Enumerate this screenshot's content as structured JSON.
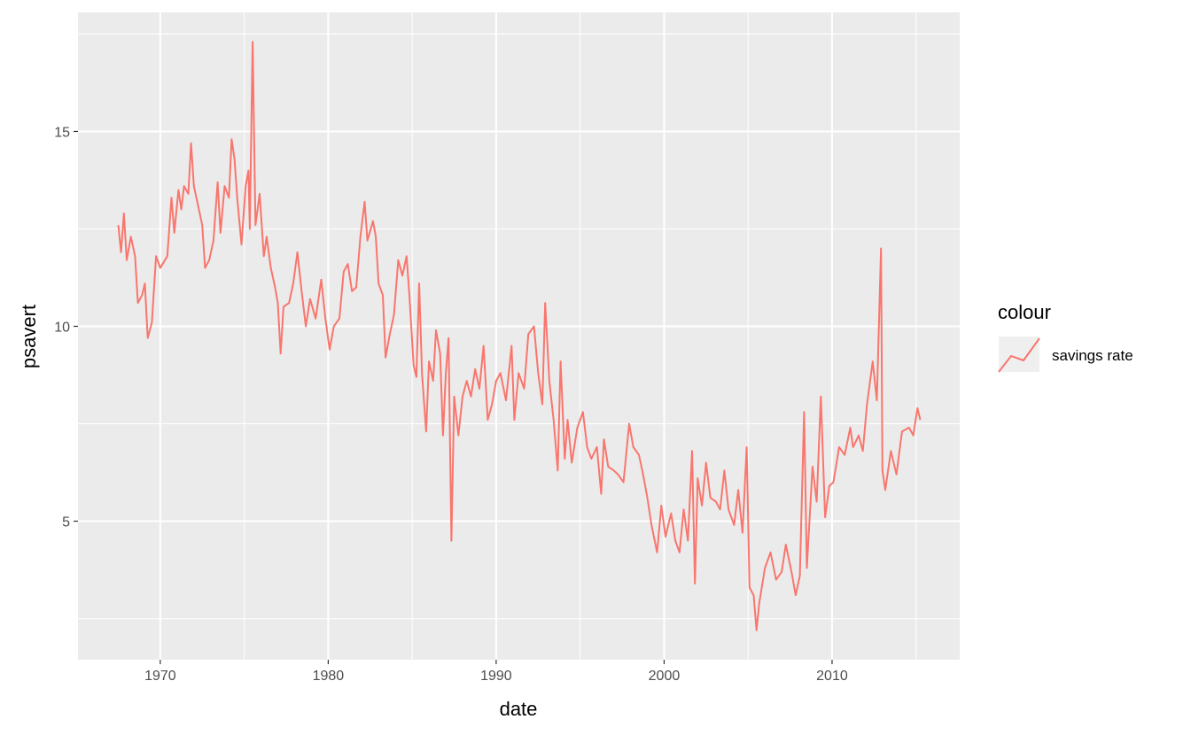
{
  "chart_data": {
    "type": "line",
    "title": "",
    "xlabel": "date",
    "ylabel": "psavert",
    "xlim": [
      1965.1,
      2017.6
    ],
    "ylim": [
      1.445,
      18.055
    ],
    "x_ticks": [
      1970,
      1980,
      1990,
      2000,
      2010
    ],
    "x_tick_labels": [
      "1970",
      "1980",
      "1990",
      "2000",
      "2010"
    ],
    "y_ticks": [
      5,
      10,
      15
    ],
    "y_tick_labels": [
      "5",
      "10",
      "15"
    ],
    "grid": true,
    "legend": {
      "title": "colour",
      "placement": "right",
      "entries": [
        "savings rate"
      ]
    },
    "colors": {
      "series": "#F8766D",
      "panel": "#EBEBEB",
      "grid": "#FFFFFF"
    },
    "series": [
      {
        "name": "savings rate",
        "points": [
          [
            "1967-07",
            12.6
          ],
          [
            "1967-09",
            11.9
          ],
          [
            "1967-11",
            12.9
          ],
          [
            "1968-01",
            11.7
          ],
          [
            "1968-04",
            12.3
          ],
          [
            "1968-07",
            11.8
          ],
          [
            "1968-09",
            10.6
          ],
          [
            "1968-12",
            10.8
          ],
          [
            "1969-02",
            11.1
          ],
          [
            "1969-04",
            9.7
          ],
          [
            "1969-07",
            10.1
          ],
          [
            "1969-10",
            11.8
          ],
          [
            "1970-01",
            11.5
          ],
          [
            "1970-06",
            11.8
          ],
          [
            "1970-09",
            13.3
          ],
          [
            "1970-11",
            12.4
          ],
          [
            "1971-02",
            13.5
          ],
          [
            "1971-04",
            13.0
          ],
          [
            "1971-06",
            13.6
          ],
          [
            "1971-09",
            13.4
          ],
          [
            "1971-11",
            14.7
          ],
          [
            "1972-01",
            13.6
          ],
          [
            "1972-04",
            13.1
          ],
          [
            "1972-07",
            12.6
          ],
          [
            "1972-09",
            11.5
          ],
          [
            "1972-12",
            11.7
          ],
          [
            "1973-03",
            12.2
          ],
          [
            "1973-06",
            13.7
          ],
          [
            "1973-08",
            12.4
          ],
          [
            "1973-11",
            13.6
          ],
          [
            "1974-02",
            13.3
          ],
          [
            "1974-04",
            14.8
          ],
          [
            "1974-06",
            14.3
          ],
          [
            "1974-08",
            13.3
          ],
          [
            "1974-11",
            12.1
          ],
          [
            "1975-02",
            13.6
          ],
          [
            "1975-04",
            14.0
          ],
          [
            "1975-05",
            12.5
          ],
          [
            "1975-07",
            17.3
          ],
          [
            "1975-09",
            12.6
          ],
          [
            "1975-12",
            13.4
          ],
          [
            "1976-03",
            11.8
          ],
          [
            "1976-05",
            12.3
          ],
          [
            "1976-08",
            11.5
          ],
          [
            "1976-11",
            11.0
          ],
          [
            "1977-01",
            10.6
          ],
          [
            "1977-03",
            9.3
          ],
          [
            "1977-05",
            10.5
          ],
          [
            "1977-09",
            10.6
          ],
          [
            "1977-12",
            11.1
          ],
          [
            "1978-03",
            11.9
          ],
          [
            "1978-06",
            10.9
          ],
          [
            "1978-09",
            10.0
          ],
          [
            "1978-12",
            10.7
          ],
          [
            "1979-04",
            10.2
          ],
          [
            "1979-08",
            11.2
          ],
          [
            "1979-11",
            10.2
          ],
          [
            "1980-02",
            9.4
          ],
          [
            "1980-05",
            10.0
          ],
          [
            "1980-09",
            10.2
          ],
          [
            "1980-12",
            11.4
          ],
          [
            "1981-03",
            11.6
          ],
          [
            "1981-06",
            10.9
          ],
          [
            "1981-09",
            11.0
          ],
          [
            "1981-12",
            12.3
          ],
          [
            "1982-03",
            13.2
          ],
          [
            "1982-05",
            12.2
          ],
          [
            "1982-09",
            12.7
          ],
          [
            "1982-11",
            12.3
          ],
          [
            "1983-01",
            11.1
          ],
          [
            "1983-04",
            10.8
          ],
          [
            "1983-06",
            9.2
          ],
          [
            "1983-09",
            9.8
          ],
          [
            "1983-12",
            10.3
          ],
          [
            "1984-03",
            11.7
          ],
          [
            "1984-06",
            11.3
          ],
          [
            "1984-09",
            11.8
          ],
          [
            "1984-11",
            10.8
          ],
          [
            "1985-02",
            9.0
          ],
          [
            "1985-04",
            8.7
          ],
          [
            "1985-06",
            11.1
          ],
          [
            "1985-08",
            8.8
          ],
          [
            "1985-11",
            7.3
          ],
          [
            "1986-01",
            9.1
          ],
          [
            "1986-04",
            8.6
          ],
          [
            "1986-06",
            9.9
          ],
          [
            "1986-09",
            9.3
          ],
          [
            "1986-11",
            7.2
          ],
          [
            "1987-01",
            8.8
          ],
          [
            "1987-03",
            9.7
          ],
          [
            "1987-05",
            4.5
          ],
          [
            "1987-07",
            8.2
          ],
          [
            "1987-10",
            7.2
          ],
          [
            "1988-01",
            8.2
          ],
          [
            "1988-04",
            8.6
          ],
          [
            "1988-07",
            8.2
          ],
          [
            "1988-10",
            8.9
          ],
          [
            "1989-01",
            8.4
          ],
          [
            "1989-04",
            9.5
          ],
          [
            "1989-07",
            7.6
          ],
          [
            "1989-10",
            8.0
          ],
          [
            "1990-01",
            8.6
          ],
          [
            "1990-04",
            8.8
          ],
          [
            "1990-08",
            8.1
          ],
          [
            "1990-12",
            9.5
          ],
          [
            "1991-02",
            7.6
          ],
          [
            "1991-05",
            8.8
          ],
          [
            "1991-09",
            8.4
          ],
          [
            "1991-12",
            9.8
          ],
          [
            "1992-04",
            10.0
          ],
          [
            "1992-07",
            8.8
          ],
          [
            "1992-10",
            8.0
          ],
          [
            "1992-12",
            10.6
          ],
          [
            "1993-03",
            8.6
          ],
          [
            "1993-06",
            7.6
          ],
          [
            "1993-09",
            6.3
          ],
          [
            "1993-11",
            9.1
          ],
          [
            "1994-02",
            6.6
          ],
          [
            "1994-04",
            7.6
          ],
          [
            "1994-07",
            6.5
          ],
          [
            "1994-11",
            7.4
          ],
          [
            "1995-03",
            7.8
          ],
          [
            "1995-06",
            6.9
          ],
          [
            "1995-09",
            6.6
          ],
          [
            "1996-01",
            6.9
          ],
          [
            "1996-04",
            5.7
          ],
          [
            "1996-06",
            7.1
          ],
          [
            "1996-09",
            6.4
          ],
          [
            "1997-01",
            6.3
          ],
          [
            "1997-04",
            6.2
          ],
          [
            "1997-08",
            6.0
          ],
          [
            "1997-12",
            7.5
          ],
          [
            "1998-03",
            6.9
          ],
          [
            "1998-07",
            6.7
          ],
          [
            "1998-10",
            6.2
          ],
          [
            "1999-01",
            5.6
          ],
          [
            "1999-04",
            4.9
          ],
          [
            "1999-08",
            4.2
          ],
          [
            "1999-11",
            5.4
          ],
          [
            "2000-02",
            4.6
          ],
          [
            "2000-06",
            5.2
          ],
          [
            "2000-09",
            4.5
          ],
          [
            "2000-12",
            4.2
          ],
          [
            "2001-03",
            5.3
          ],
          [
            "2001-06",
            4.5
          ],
          [
            "2001-09",
            6.8
          ],
          [
            "2001-11",
            3.4
          ],
          [
            "2002-01",
            6.1
          ],
          [
            "2002-04",
            5.4
          ],
          [
            "2002-07",
            6.5
          ],
          [
            "2002-10",
            5.6
          ],
          [
            "2003-02",
            5.5
          ],
          [
            "2003-05",
            5.3
          ],
          [
            "2003-08",
            6.3
          ],
          [
            "2003-11",
            5.3
          ],
          [
            "2004-03",
            4.9
          ],
          [
            "2004-06",
            5.8
          ],
          [
            "2004-09",
            4.7
          ],
          [
            "2004-12",
            6.9
          ],
          [
            "2005-02",
            3.3
          ],
          [
            "2005-05",
            3.1
          ],
          [
            "2005-07",
            2.2
          ],
          [
            "2005-09",
            2.9
          ],
          [
            "2006-01",
            3.8
          ],
          [
            "2006-05",
            4.2
          ],
          [
            "2006-09",
            3.5
          ],
          [
            "2007-01",
            3.7
          ],
          [
            "2007-04",
            4.4
          ],
          [
            "2007-08",
            3.7
          ],
          [
            "2007-11",
            3.1
          ],
          [
            "2008-02",
            3.6
          ],
          [
            "2008-05",
            7.8
          ],
          [
            "2008-07",
            3.8
          ],
          [
            "2008-11",
            6.4
          ],
          [
            "2009-02",
            5.5
          ],
          [
            "2009-05",
            8.2
          ],
          [
            "2009-08",
            5.1
          ],
          [
            "2009-11",
            5.9
          ],
          [
            "2010-02",
            6.0
          ],
          [
            "2010-06",
            6.9
          ],
          [
            "2010-10",
            6.7
          ],
          [
            "2011-02",
            7.4
          ],
          [
            "2011-04",
            6.9
          ],
          [
            "2011-08",
            7.2
          ],
          [
            "2011-11",
            6.8
          ],
          [
            "2012-02",
            8.0
          ],
          [
            "2012-06",
            9.1
          ],
          [
            "2012-09",
            8.1
          ],
          [
            "2012-12",
            12.0
          ],
          [
            "2013-01",
            6.3
          ],
          [
            "2013-03",
            5.8
          ],
          [
            "2013-07",
            6.8
          ],
          [
            "2013-11",
            6.2
          ],
          [
            "2014-03",
            7.3
          ],
          [
            "2014-08",
            7.4
          ],
          [
            "2014-11",
            7.2
          ],
          [
            "2015-02",
            7.9
          ],
          [
            "2015-04",
            7.6
          ]
        ]
      }
    ]
  }
}
